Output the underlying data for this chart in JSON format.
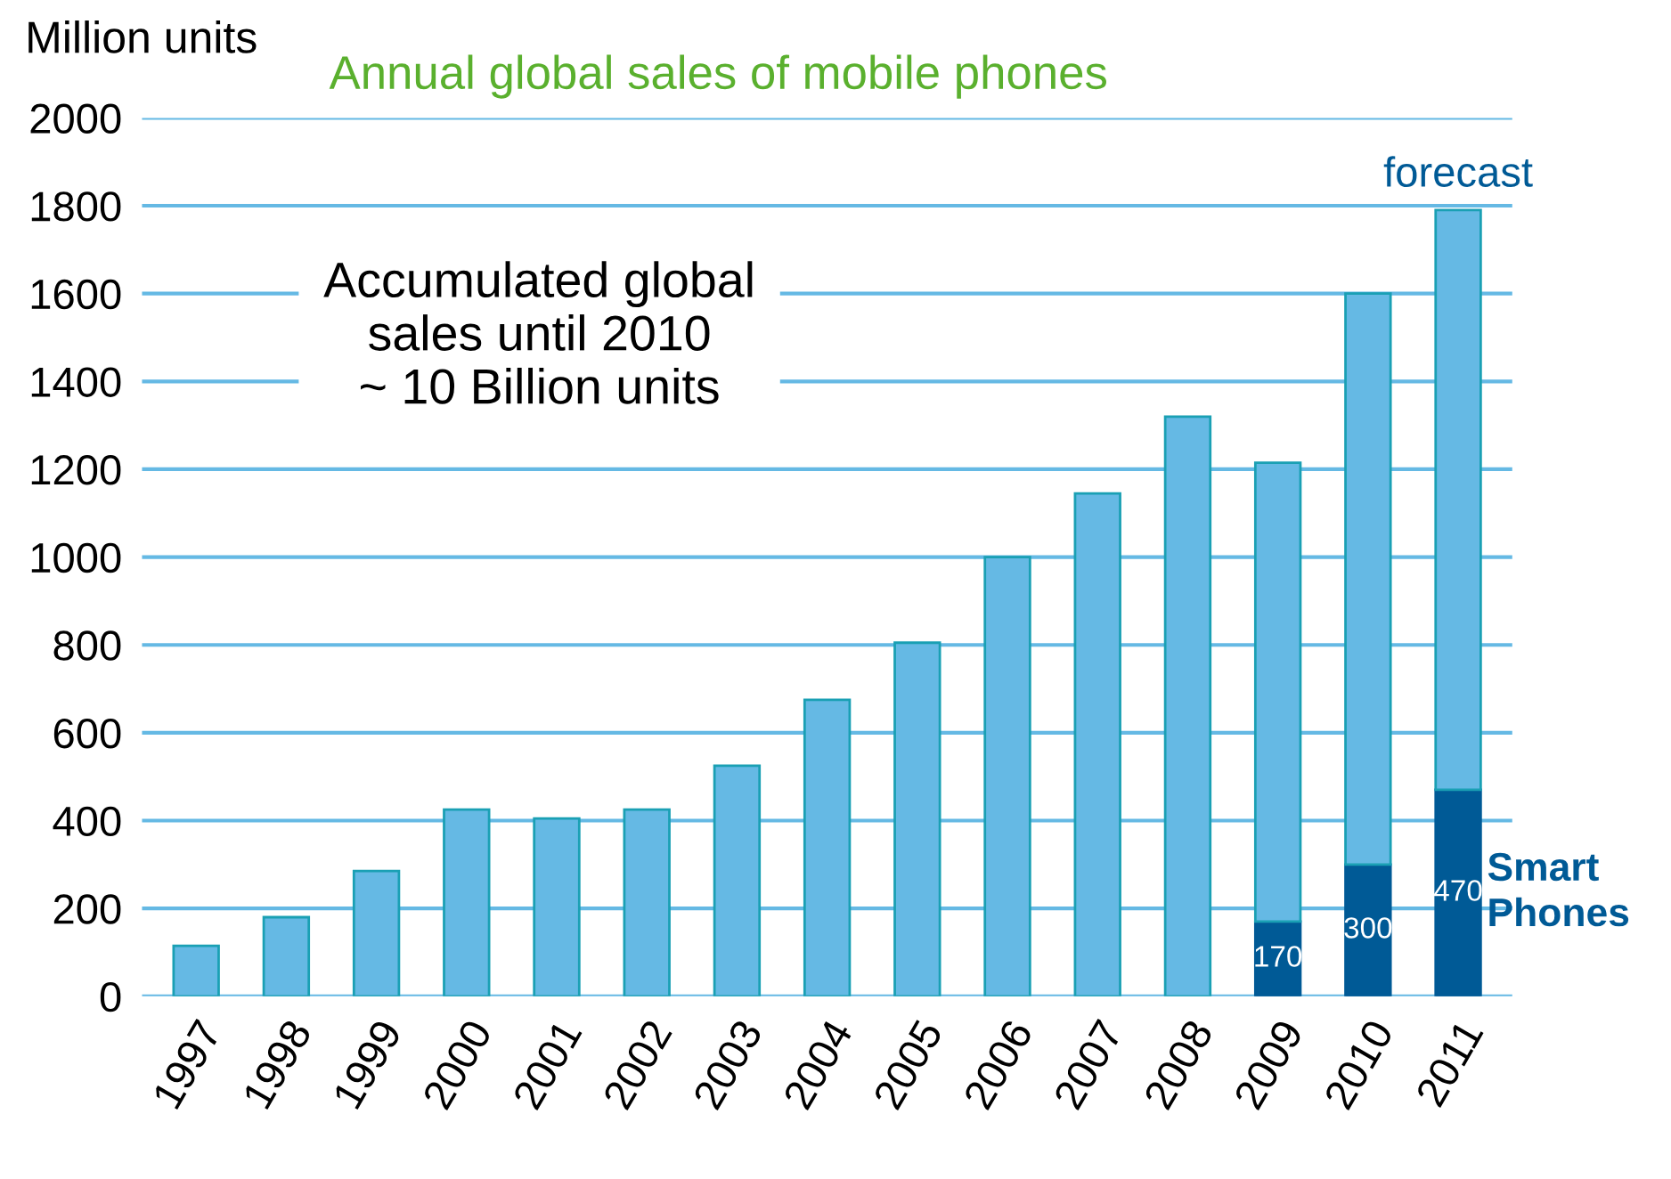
{
  "chart_data": {
    "type": "bar",
    "title": "Annual global sales of mobile phones",
    "ylabel": "Million units",
    "categories": [
      "1997",
      "1998",
      "1999",
      "2000",
      "2001",
      "2002",
      "2003",
      "2004",
      "2005",
      "2006",
      "2007",
      "2008",
      "2009",
      "2010",
      "2011"
    ],
    "stacked": true,
    "series": [
      {
        "name": "Smart Phones",
        "color": "#005a96",
        "values": [
          null,
          null,
          null,
          null,
          null,
          null,
          null,
          null,
          null,
          null,
          null,
          null,
          170,
          300,
          470
        ],
        "value_labels": [
          null,
          null,
          null,
          null,
          null,
          null,
          null,
          null,
          null,
          null,
          null,
          null,
          "170",
          "300",
          "470"
        ]
      },
      {
        "color": "#65b9e4",
        "values": [
          115,
          180,
          285,
          425,
          405,
          425,
          525,
          675,
          805,
          1000,
          1145,
          1320,
          1045,
          1300,
          1320
        ]
      }
    ],
    "ylim": [
      0,
      2000
    ],
    "yticks": [
      0,
      200,
      400,
      600,
      800,
      1000,
      1200,
      1400,
      1600,
      1800,
      2000
    ],
    "grid": "y",
    "annotations": [
      "Accumulated global\nsales until 2010\n~ 10 Billion units",
      {
        "text": "forecast",
        "x": "2011",
        "y": 1790
      }
    ]
  }
}
